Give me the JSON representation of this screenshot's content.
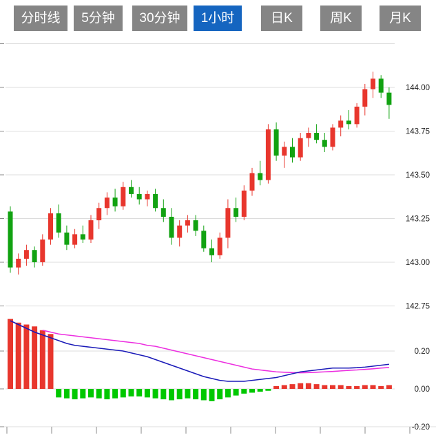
{
  "tabs": {
    "items": [
      {
        "id": "tab-timeline",
        "label": "分时线",
        "active": false
      },
      {
        "id": "tab-5min",
        "label": "5分钟",
        "active": false
      },
      {
        "id": "tab-30min",
        "label": "30分钟",
        "active": false
      },
      {
        "id": "tab-1hour",
        "label": "1小时",
        "active": true
      },
      {
        "id": "tab-daily-k",
        "label": "日K",
        "active": false
      },
      {
        "id": "tab-weekly-k",
        "label": "周K",
        "active": false
      },
      {
        "id": "tab-monthly-k",
        "label": "月K",
        "active": false
      }
    ]
  },
  "colors": {
    "up": "#e8362d",
    "down": "#11a211",
    "hist_up": "#e8362d",
    "hist_down": "#00c800",
    "dif_line": "#1a1ab8",
    "dea_line": "#ec2ee0",
    "grid": "#dcdcdc",
    "tick": "#8a8a8a",
    "axis_text": "#222222",
    "tab_bg": "#858585",
    "tab_active_bg": "#1565c0",
    "tab_text": "#ffffff",
    "background": "#ffffff"
  },
  "chart_data": {
    "type": "candlestick",
    "title": "",
    "legend": "none",
    "grid": true,
    "price_panel": {
      "ylim": [
        142.7,
        144.25
      ],
      "yticks": [
        {
          "value": 144.25,
          "label": ""
        },
        {
          "value": 144.0,
          "label": "144.00"
        },
        {
          "value": 143.75,
          "label": "143.75"
        },
        {
          "value": 143.5,
          "label": "143.50"
        },
        {
          "value": 143.25,
          "label": "143.25"
        },
        {
          "value": 143.0,
          "label": "143.00"
        },
        {
          "value": 142.75,
          "label": "142.75"
        }
      ],
      "candles_ohlc": [
        [
          143.29,
          143.32,
          142.94,
          142.97
        ],
        [
          142.97,
          143.05,
          142.93,
          143.02
        ],
        [
          143.02,
          143.1,
          142.98,
          143.07
        ],
        [
          143.07,
          143.09,
          142.97,
          143.0
        ],
        [
          143.0,
          143.16,
          142.98,
          143.13
        ],
        [
          143.13,
          143.31,
          143.1,
          143.28
        ],
        [
          143.28,
          143.33,
          143.14,
          143.17
        ],
        [
          143.17,
          143.21,
          143.07,
          143.1
        ],
        [
          143.1,
          143.19,
          143.08,
          143.16
        ],
        [
          143.16,
          143.21,
          143.11,
          143.13
        ],
        [
          143.13,
          143.27,
          143.11,
          143.24
        ],
        [
          143.24,
          143.34,
          143.19,
          143.31
        ],
        [
          143.31,
          143.4,
          143.27,
          143.37
        ],
        [
          143.37,
          143.42,
          143.29,
          143.32
        ],
        [
          143.32,
          143.46,
          143.3,
          143.43
        ],
        [
          143.43,
          143.47,
          143.37,
          143.39
        ],
        [
          143.39,
          143.43,
          143.33,
          143.36
        ],
        [
          143.36,
          143.41,
          143.32,
          143.39
        ],
        [
          143.39,
          143.42,
          143.29,
          143.31
        ],
        [
          143.31,
          143.36,
          143.23,
          143.26
        ],
        [
          143.26,
          143.31,
          143.1,
          143.14
        ],
        [
          143.14,
          143.24,
          143.09,
          143.21
        ],
        [
          143.21,
          143.27,
          143.17,
          143.24
        ],
        [
          143.24,
          143.27,
          143.15,
          143.18
        ],
        [
          143.18,
          143.21,
          143.06,
          143.08
        ],
        [
          143.08,
          143.13,
          143.0,
          143.04
        ],
        [
          143.04,
          143.17,
          143.02,
          143.14
        ],
        [
          143.14,
          143.36,
          143.08,
          143.31
        ],
        [
          143.31,
          143.37,
          143.23,
          143.26
        ],
        [
          143.26,
          143.44,
          143.24,
          143.41
        ],
        [
          143.41,
          143.54,
          143.38,
          143.51
        ],
        [
          143.51,
          143.58,
          143.44,
          143.47
        ],
        [
          143.47,
          143.79,
          143.45,
          143.76
        ],
        [
          143.76,
          143.8,
          143.58,
          143.61
        ],
        [
          143.61,
          143.69,
          143.54,
          143.66
        ],
        [
          143.66,
          143.71,
          143.57,
          143.6
        ],
        [
          143.6,
          143.74,
          143.58,
          143.71
        ],
        [
          143.71,
          143.77,
          143.66,
          143.74
        ],
        [
          143.74,
          143.79,
          143.68,
          143.7
        ],
        [
          143.7,
          143.74,
          143.63,
          143.66
        ],
        [
          143.66,
          143.79,
          143.64,
          143.77
        ],
        [
          143.77,
          143.84,
          143.72,
          143.81
        ],
        [
          143.81,
          143.87,
          143.76,
          143.79
        ],
        [
          143.79,
          143.91,
          143.77,
          143.89
        ],
        [
          143.89,
          144.02,
          143.84,
          143.99
        ],
        [
          143.99,
          144.09,
          143.94,
          144.05
        ],
        [
          144.05,
          144.07,
          143.94,
          143.97
        ],
        [
          143.97,
          144.0,
          143.82,
          143.9
        ]
      ]
    },
    "macd_panel": {
      "ylim": [
        -0.24,
        0.4
      ],
      "yticks": [
        {
          "value": 0.2,
          "label": "0.20"
        },
        {
          "value": 0.0,
          "label": "0.00"
        },
        {
          "value": -0.2,
          "label": "-0.20"
        }
      ],
      "dif": [
        0.36,
        0.34,
        0.32,
        0.3,
        0.285,
        0.27,
        0.255,
        0.24,
        0.23,
        0.225,
        0.22,
        0.215,
        0.21,
        0.205,
        0.2,
        0.19,
        0.18,
        0.17,
        0.155,
        0.14,
        0.125,
        0.11,
        0.095,
        0.08,
        0.065,
        0.055,
        0.045,
        0.04,
        0.04,
        0.04,
        0.045,
        0.05,
        0.055,
        0.06,
        0.07,
        0.08,
        0.09,
        0.095,
        0.1,
        0.105,
        0.11,
        0.11,
        0.11,
        0.112,
        0.115,
        0.12,
        0.125,
        0.13
      ],
      "dea": [
        null,
        null,
        null,
        null,
        0.31,
        0.3,
        0.29,
        0.285,
        0.28,
        0.275,
        0.27,
        0.265,
        0.26,
        0.255,
        0.25,
        0.245,
        0.24,
        0.23,
        0.225,
        0.215,
        0.205,
        0.195,
        0.185,
        0.175,
        0.165,
        0.155,
        0.145,
        0.135,
        0.125,
        0.115,
        0.105,
        0.1,
        0.095,
        0.09,
        0.088,
        0.086,
        0.085,
        0.086,
        0.088,
        0.09,
        0.092,
        0.095,
        0.098,
        0.1,
        0.103,
        0.106,
        0.11,
        0.113
      ],
      "hist": [
        0.37,
        0.35,
        0.34,
        0.33,
        0.31,
        0.29,
        -0.045,
        -0.05,
        -0.055,
        -0.05,
        -0.045,
        -0.05,
        -0.055,
        -0.05,
        -0.045,
        -0.04,
        -0.04,
        -0.045,
        -0.05,
        -0.055,
        -0.06,
        -0.055,
        -0.05,
        -0.055,
        -0.06,
        -0.065,
        -0.055,
        -0.045,
        -0.035,
        -0.025,
        -0.02,
        -0.015,
        -0.01,
        0.015,
        0.02,
        0.025,
        0.03,
        0.03,
        0.025,
        0.02,
        0.02,
        0.02,
        0.015,
        0.015,
        0.02,
        0.02,
        0.015,
        0.02
      ]
    }
  }
}
